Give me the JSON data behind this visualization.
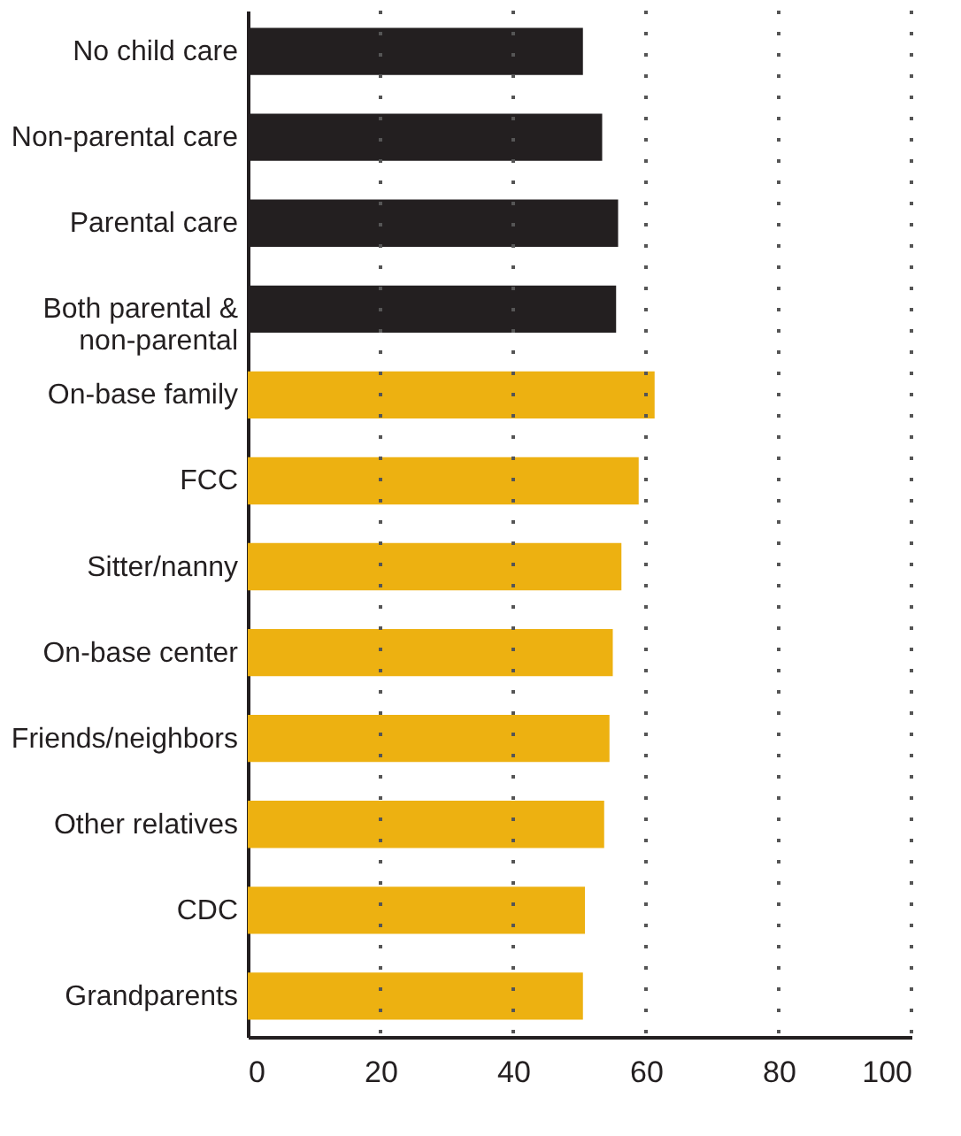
{
  "chart_data": {
    "type": "bar",
    "orientation": "horizontal",
    "categories": [
      "No child care",
      "Non-parental care",
      "Parental care",
      "Both parental & non-parental",
      "On-base family",
      "FCC",
      "Sitter/nanny",
      "On-base center",
      "Friends/neighbors",
      "Other relatives",
      "CDC",
      "Grandparents"
    ],
    "values": [
      50.5,
      53.4,
      55.8,
      55.5,
      61.3,
      58.9,
      56.3,
      55.0,
      54.5,
      53.7,
      50.8,
      50.5
    ],
    "colors": [
      "#231f20",
      "#231f20",
      "#231f20",
      "#231f20",
      "#edb111",
      "#edb111",
      "#edb111",
      "#edb111",
      "#edb111",
      "#edb111",
      "#edb111",
      "#edb111"
    ],
    "xlim": [
      0,
      100
    ],
    "xticks": [
      0,
      20,
      40,
      60,
      80,
      100
    ],
    "grid": "x"
  }
}
